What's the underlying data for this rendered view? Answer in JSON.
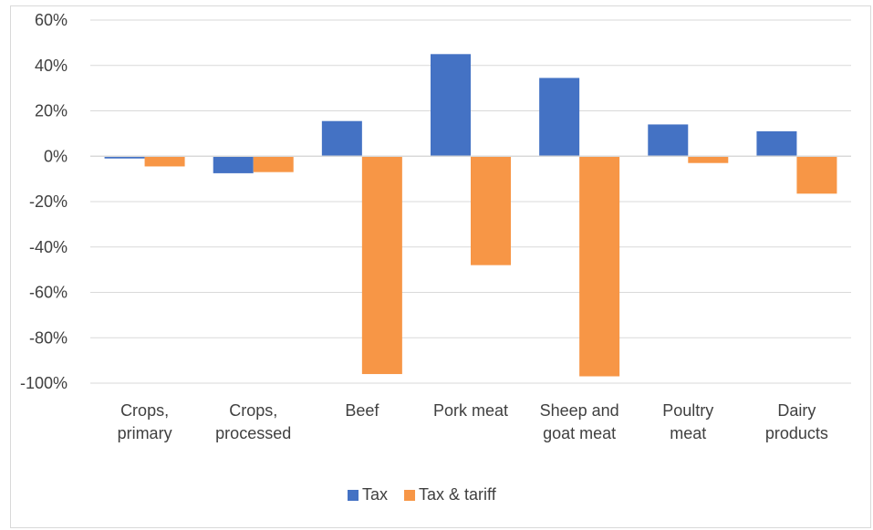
{
  "chart_data": {
    "type": "bar",
    "title": "",
    "xlabel": "",
    "ylabel": "",
    "ylim": [
      -100,
      60
    ],
    "y_tick_step": 20,
    "y_tick_format": "percent",
    "grid": true,
    "legend_position": "bottom",
    "categories": [
      [
        "Crops,",
        "primary"
      ],
      [
        "Crops,",
        "processed"
      ],
      [
        "Beef"
      ],
      [
        "Pork meat"
      ],
      [
        "Sheep and",
        "goat meat"
      ],
      [
        "Poultry",
        "meat"
      ],
      [
        "Dairy",
        "products"
      ]
    ],
    "series": [
      {
        "name": "Tax",
        "color": "#4472c4",
        "values": [
          -1,
          -7.5,
          15.5,
          45,
          34.5,
          14,
          11
        ]
      },
      {
        "name": "Tax & tariff",
        "color": "#f79646",
        "values": [
          -4.5,
          -7,
          -96,
          -48,
          -97,
          -3,
          -16.5
        ]
      }
    ]
  }
}
